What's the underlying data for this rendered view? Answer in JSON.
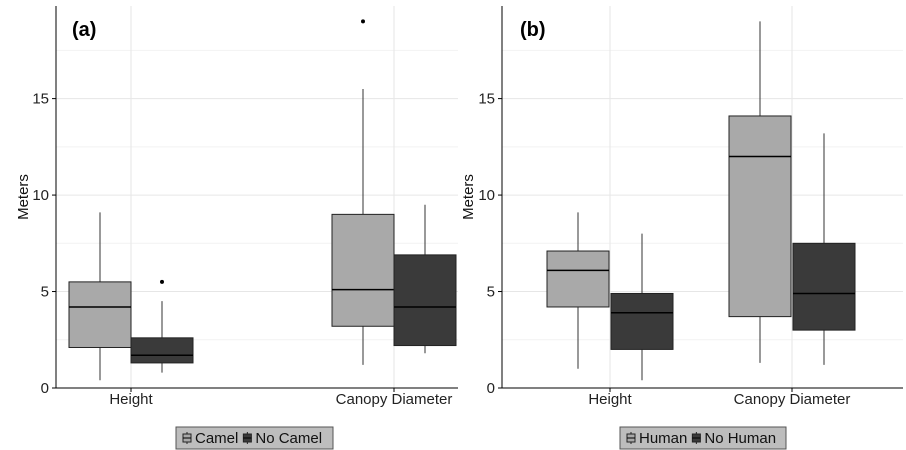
{
  "colors": {
    "light_fill": "#a9a9a9",
    "dark_fill": "#3a3a3a",
    "grid": "#e6e6e6",
    "axis": "#000000",
    "legend_bg": "#bdbdbd"
  },
  "chart_data": [
    {
      "type": "box",
      "panel_label": "(a)",
      "ylabel": "Meters",
      "xlabel": "",
      "ylim": [
        0,
        19.8
      ],
      "yticks": [
        0,
        5,
        10,
        15
      ],
      "grid": true,
      "legend_position": "bottom",
      "categories": [
        "Height",
        "Canopy Diameter"
      ],
      "series": [
        {
          "name": "Camel",
          "fill": "light",
          "boxes": [
            {
              "min": 0.4,
              "q1": 2.1,
              "median": 4.2,
              "q3": 5.5,
              "max": 9.1,
              "outliers": []
            },
            {
              "min": 1.2,
              "q1": 3.2,
              "median": 5.1,
              "q3": 9.0,
              "max": 15.5,
              "outliers": [
                19.0
              ]
            }
          ]
        },
        {
          "name": "No Camel",
          "fill": "dark",
          "boxes": [
            {
              "min": 0.8,
              "q1": 1.3,
              "median": 1.7,
              "q3": 2.6,
              "max": 4.5,
              "outliers": [
                5.5
              ]
            },
            {
              "min": 1.8,
              "q1": 2.2,
              "median": 4.2,
              "q3": 6.9,
              "max": 9.5,
              "outliers": []
            }
          ]
        }
      ]
    },
    {
      "type": "box",
      "panel_label": "(b)",
      "ylabel": "Meters",
      "xlabel": "",
      "ylim": [
        0,
        19.8
      ],
      "yticks": [
        0,
        5,
        10,
        15
      ],
      "grid": true,
      "legend_position": "bottom",
      "categories": [
        "Height",
        "Canopy Diameter"
      ],
      "series": [
        {
          "name": "Human",
          "fill": "light",
          "boxes": [
            {
              "min": 1.0,
              "q1": 4.2,
              "median": 6.1,
              "q3": 7.1,
              "max": 9.1,
              "outliers": []
            },
            {
              "min": 1.3,
              "q1": 3.7,
              "median": 12.0,
              "q3": 14.1,
              "max": 19.0,
              "outliers": []
            }
          ]
        },
        {
          "name": "No Human",
          "fill": "dark",
          "boxes": [
            {
              "min": 0.4,
              "q1": 2.0,
              "median": 3.9,
              "q3": 4.9,
              "max": 8.0,
              "outliers": []
            },
            {
              "min": 1.2,
              "q1": 3.0,
              "median": 4.9,
              "q3": 7.5,
              "max": 13.2,
              "outliers": []
            }
          ]
        }
      ]
    }
  ]
}
